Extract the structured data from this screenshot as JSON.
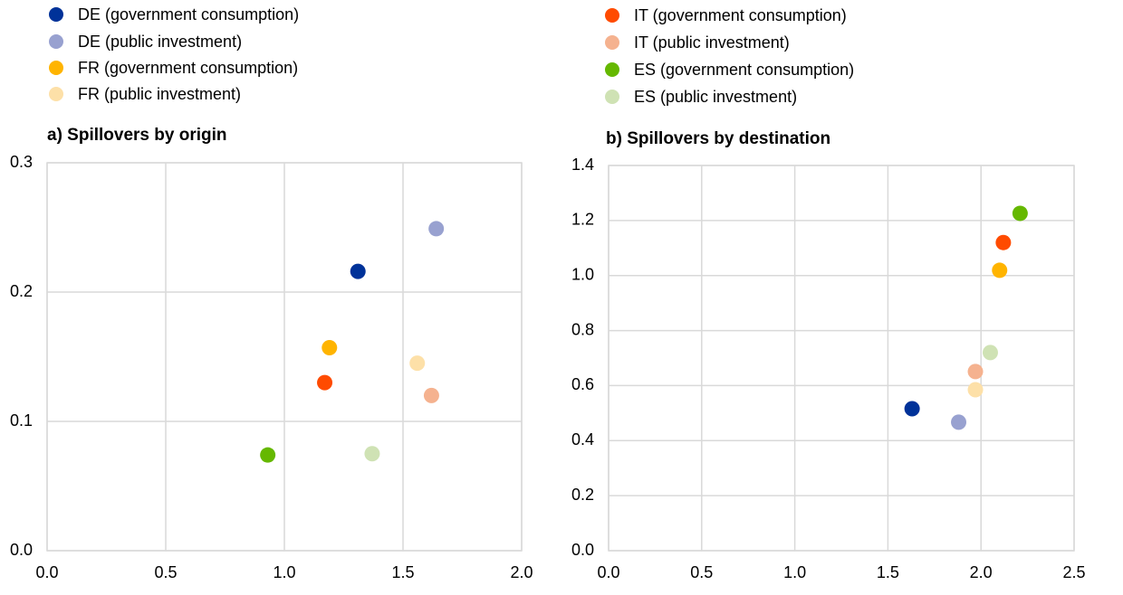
{
  "legend": [
    {
      "name": "DE (government consumption)",
      "color": "#003299"
    },
    {
      "name": "DE (public investment)",
      "color": "#98a1d0"
    },
    {
      "name": "FR (government consumption)",
      "color": "#ffb400"
    },
    {
      "name": "FR (public investment)",
      "color": "#fde0a8"
    },
    {
      "name": "IT (government consumption)",
      "color": "#ff4b00"
    },
    {
      "name": "IT (public investment)",
      "color": "#f5b28f"
    },
    {
      "name": "ES (government consumption)",
      "color": "#65b800"
    },
    {
      "name": "ES (public investment)",
      "color": "#cfe2b4"
    }
  ],
  "chart_data": [
    {
      "type": "scatter",
      "title": "a) Spillovers by origin",
      "series": [
        {
          "x": [
            1.31
          ],
          "values": [
            0.216
          ]
        },
        {
          "x": [
            1.64
          ],
          "values": [
            0.249
          ]
        },
        {
          "x": [
            1.19
          ],
          "values": [
            0.157
          ]
        },
        {
          "x": [
            1.56
          ],
          "values": [
            0.145
          ]
        },
        {
          "x": [
            1.17
          ],
          "values": [
            0.13
          ]
        },
        {
          "x": [
            1.62
          ],
          "values": [
            0.12
          ]
        },
        {
          "x": [
            0.93
          ],
          "values": [
            0.074
          ]
        },
        {
          "x": [
            1.37
          ],
          "values": [
            0.075
          ]
        }
      ],
      "xlim": [
        0,
        2
      ],
      "xticks": [
        {
          "value": 0,
          "label": "0.0"
        },
        0.5,
        {
          "value": 1,
          "label": "1.0"
        },
        1.5,
        {
          "value": 2,
          "label": "2.0"
        }
      ],
      "ylim": [
        0,
        0.3
      ],
      "yticks": [
        {
          "value": 0,
          "label": "0.0"
        },
        0.1,
        0.2,
        0.3
      ],
      "grid": true
    },
    {
      "type": "scatter",
      "title": "b) Spillovers by destination",
      "series": [
        {
          "x": [
            1.63
          ],
          "values": [
            0.516
          ]
        },
        {
          "x": [
            1.88
          ],
          "values": [
            0.467
          ]
        },
        {
          "x": [
            2.1
          ],
          "values": [
            1.019
          ]
        },
        {
          "x": [
            1.97
          ],
          "values": [
            0.585
          ]
        },
        {
          "x": [
            2.12
          ],
          "values": [
            1.12
          ]
        },
        {
          "x": [
            1.97
          ],
          "values": [
            0.651
          ]
        },
        {
          "x": [
            2.21
          ],
          "values": [
            1.226
          ]
        },
        {
          "x": [
            2.05
          ],
          "values": [
            0.72
          ]
        }
      ],
      "xlim": [
        0,
        2.5
      ],
      "xticks": [
        {
          "value": 0,
          "label": "0.0"
        },
        0.5,
        {
          "value": 1,
          "label": "1.0"
        },
        1.5,
        {
          "value": 2,
          "label": "2.0"
        },
        2.5
      ],
      "ylim": [
        0,
        1.4
      ],
      "yticks": [
        {
          "value": 0,
          "label": "0.0"
        },
        0.2,
        0.4,
        0.6,
        0.8,
        {
          "value": 1,
          "label": "1.0"
        },
        1.2,
        1.4
      ],
      "grid": true
    }
  ]
}
